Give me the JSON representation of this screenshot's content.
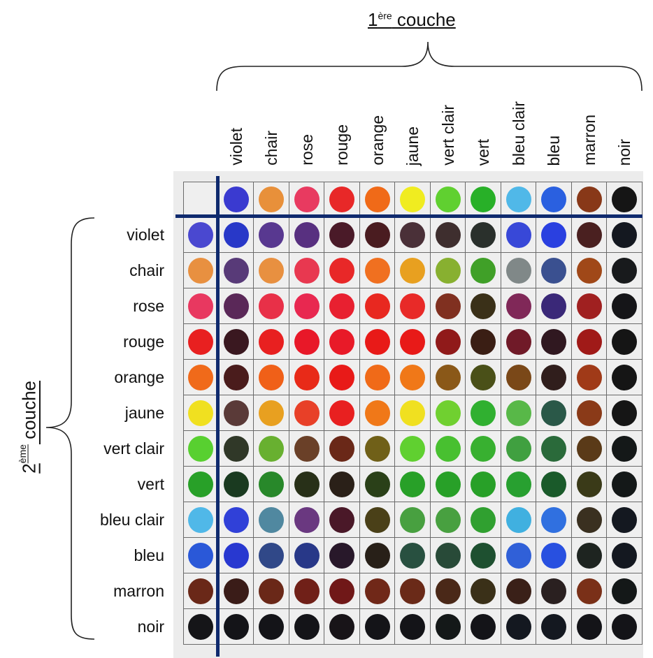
{
  "title_top": {
    "pre": "1",
    "sup": "ère",
    "post": " couche"
  },
  "title_left": {
    "pre": "2",
    "sup": "ème",
    "post": " couche"
  },
  "columns": [
    "violet",
    "chair",
    "rose",
    "rouge",
    "orange",
    "jaune",
    "vert clair",
    "vert",
    "bleu clair",
    "bleu",
    "marron",
    "noir"
  ],
  "rows": [
    "violet",
    "chair",
    "rose",
    "rouge",
    "orange",
    "jaune",
    "vert clair",
    "vert",
    "bleu clair",
    "bleu",
    "marron",
    "noir"
  ],
  "header_colors": [
    "#3a3ad0",
    "#e8903a",
    "#e83a60",
    "#e82828",
    "#f06a18",
    "#f0ec20",
    "#60d030",
    "#28b028",
    "#50b8e8",
    "#2a60e0",
    "#883818",
    "#151515"
  ],
  "row_base_colors": [
    "#4a48d0",
    "#e89040",
    "#e83860",
    "#e82020",
    "#f06a1a",
    "#f0e020",
    "#58d030",
    "#28a028",
    "#50b8e8",
    "#2a58d8",
    "#6a2818",
    "#151518"
  ],
  "mix_colors": [
    [
      "#2838c8",
      "#583890",
      "#583080",
      "#4a1a28",
      "#4a1c20",
      "#4a3038",
      "#3e2e2e",
      "#2a302c",
      "#3848d8",
      "#2a40e0",
      "#4a2020",
      "#141820"
    ],
    [
      "#583a78",
      "#e89040",
      "#e83850",
      "#e82828",
      "#f07020",
      "#e8a020",
      "#88b030",
      "#40a028",
      "#808888",
      "#3a5090",
      "#a04818",
      "#181a1c"
    ],
    [
      "#5a2858",
      "#e83048",
      "#e82850",
      "#e82030",
      "#e82820",
      "#e82a28",
      "#803020",
      "#3a3018",
      "#802858",
      "#3a2878",
      "#a02020",
      "#151518"
    ],
    [
      "#3a1820",
      "#e82020",
      "#e81828",
      "#e81a28",
      "#e81a18",
      "#e81a18",
      "#901a1a",
      "#3a1e14",
      "#701a28",
      "#301820",
      "#a01a18",
      "#151515"
    ],
    [
      "#4a1c1c",
      "#f06018",
      "#e82a18",
      "#e81a18",
      "#f06a18",
      "#f07818",
      "#8a5818",
      "#4a5018",
      "#7a4818",
      "#301e1c",
      "#a03a18",
      "#151515"
    ],
    [
      "#5a3a38",
      "#e8a020",
      "#e84028",
      "#e82020",
      "#f07818",
      "#f0e020",
      "#70d030",
      "#30b030",
      "#58b848",
      "#2a5848",
      "#8a3a18",
      "#151515"
    ],
    [
      "#303828",
      "#68b030",
      "#6a4028",
      "#6a2818",
      "#706018",
      "#60d030",
      "#48c030",
      "#38b030",
      "#40a040",
      "#2a6a3a",
      "#5a3a18",
      "#141818"
    ],
    [
      "#1a3a20",
      "#28882a",
      "#283018",
      "#2a2018",
      "#2a4018",
      "#28a028",
      "#28a028",
      "#28a028",
      "#28a030",
      "#1a5a2a",
      "#3a3a18",
      "#141818"
    ],
    [
      "#3040d8",
      "#5088a0",
      "#6a3880",
      "#4a1828",
      "#4a4018",
      "#48a040",
      "#48a040",
      "#30a030",
      "#40b0e0",
      "#3070e0",
      "#3a3020",
      "#141820"
    ],
    [
      "#2838d0",
      "#304888",
      "#283888",
      "#28182a",
      "#282018",
      "#285040",
      "#284a38",
      "#1e5030",
      "#3060d8",
      "#2850e0",
      "#1e2420",
      "#141820"
    ],
    [
      "#3a1c18",
      "#6a2818",
      "#702018",
      "#701818",
      "#702818",
      "#6a2a18",
      "#4a2818",
      "#3a3018",
      "#3a2018",
      "#2a2020",
      "#7a3018",
      "#141818"
    ],
    [
      "#141418",
      "#141418",
      "#141418",
      "#181418",
      "#141418",
      "#141418",
      "#141818",
      "#141418",
      "#141820",
      "#141820",
      "#141418",
      "#141418"
    ]
  ],
  "divider_color": "#0f2a6e"
}
